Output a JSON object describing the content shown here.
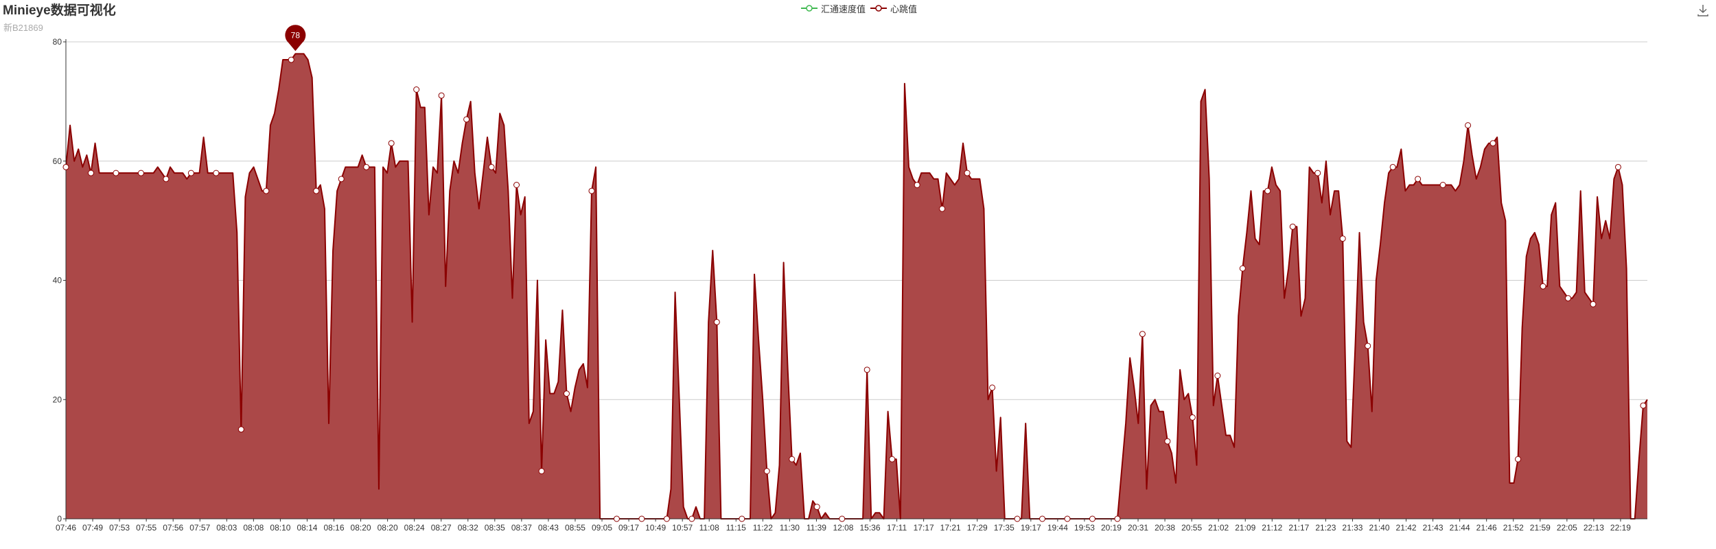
{
  "title": "Minieye数据可视化",
  "subtitle": "新B21869",
  "toolbox": {
    "save_icon": "download-icon"
  },
  "colors": {
    "speed": "#3fb950",
    "heart": "#8b0000",
    "fill": "#ab4848",
    "grid": "#cccccc",
    "axis": "#333333"
  },
  "chart_data": {
    "type": "area",
    "title": "Minieye数据可视化",
    "subtitle": "新B21869",
    "legend": [
      "汇通速度值",
      "心跳值"
    ],
    "legend_position": "top-center",
    "ylim": [
      0,
      80
    ],
    "yticks": [
      0,
      20,
      40,
      60,
      80
    ],
    "grid": true,
    "x_labels": [
      "07:46",
      "07:49",
      "07:53",
      "07:55",
      "07:56",
      "07:57",
      "08:03",
      "08:08",
      "08:10",
      "08:14",
      "08:16",
      "08:20",
      "08:20",
      "08:24",
      "08:27",
      "08:32",
      "08:35",
      "08:37",
      "08:43",
      "08:55",
      "09:05",
      "09:17",
      "10:49",
      "10:57",
      "11:08",
      "11:15",
      "11:22",
      "11:30",
      "11:39",
      "12:08",
      "15:36",
      "17:11",
      "17:17",
      "17:21",
      "17:29",
      "17:35",
      "19:17",
      "19:44",
      "19:53",
      "20:19",
      "20:31",
      "20:38",
      "20:55",
      "21:02",
      "21:09",
      "21:12",
      "21:17",
      "21:23",
      "21:33",
      "21:40",
      "21:42",
      "21:43",
      "21:44",
      "21:46",
      "21:52",
      "21:59",
      "22:05",
      "22:13",
      "22:19"
    ],
    "series": [
      {
        "name": "汇通速度值",
        "values": []
      },
      {
        "name": "心跳值",
        "values": [
          59,
          66,
          60,
          62,
          59,
          61,
          58,
          63,
          58,
          58,
          58,
          58,
          58,
          58,
          58,
          58,
          58,
          58,
          58,
          58,
          58,
          58,
          59,
          58,
          57,
          59,
          58,
          58,
          58,
          57,
          58,
          58,
          58,
          64,
          58,
          58,
          58,
          58,
          58,
          58,
          58,
          48,
          15,
          54,
          58,
          59,
          57,
          55,
          55,
          66,
          68,
          72,
          77,
          77,
          77,
          78,
          78,
          78,
          77,
          74,
          55,
          56,
          52,
          16,
          45,
          55,
          57,
          59,
          59,
          59,
          59,
          61,
          59,
          59,
          59,
          5,
          59,
          58,
          63,
          59,
          60,
          60,
          60,
          33,
          72,
          69,
          69,
          51,
          59,
          58,
          71,
          39,
          55,
          60,
          58,
          63,
          67,
          70,
          58,
          52,
          58,
          64,
          59,
          58,
          68,
          66,
          55,
          37,
          56,
          51,
          54,
          16,
          18,
          40,
          8,
          30,
          21,
          21,
          23,
          35,
          21,
          18,
          22,
          25,
          26,
          22,
          55,
          59,
          0,
          0,
          0,
          0,
          0,
          0,
          0,
          0,
          0,
          0,
          0,
          0,
          0,
          0,
          0,
          0,
          0,
          5,
          38,
          20,
          2,
          0,
          0,
          2,
          0,
          0,
          33,
          45,
          33,
          0,
          0,
          0,
          0,
          0,
          0,
          0,
          0,
          41,
          30,
          20,
          8,
          0,
          1,
          9,
          43,
          25,
          10,
          9,
          11,
          0,
          0,
          3,
          2,
          0,
          1,
          0,
          0,
          0,
          0,
          0,
          0,
          0,
          0,
          0,
          25,
          0,
          1,
          1,
          0,
          18,
          10,
          10,
          0,
          73,
          59,
          57,
          56,
          58,
          58,
          58,
          57,
          57,
          52,
          58,
          57,
          56,
          57,
          63,
          58,
          57,
          57,
          57,
          52,
          20,
          22,
          8,
          17,
          0,
          0,
          0,
          0,
          0,
          16,
          0,
          0,
          0,
          0,
          0,
          0,
          0,
          0,
          0,
          0,
          0,
          0,
          0,
          0,
          0,
          0,
          0,
          0,
          0,
          0,
          0,
          0,
          8,
          16,
          27,
          22,
          16,
          31,
          5,
          19,
          20,
          18,
          18,
          13,
          11,
          6,
          25,
          20,
          21,
          17,
          9,
          70,
          72,
          57,
          19,
          24,
          19,
          14,
          14,
          12,
          34,
          42,
          48,
          55,
          47,
          46,
          55,
          55,
          59,
          56,
          55,
          37,
          42,
          49,
          49,
          34,
          37,
          59,
          58,
          58,
          53,
          60,
          51,
          55,
          55,
          47,
          13,
          12,
          29,
          48,
          33,
          29,
          18,
          40,
          46,
          53,
          58,
          59,
          59,
          62,
          55,
          56,
          56,
          57,
          56,
          56,
          56,
          56,
          56,
          56,
          56,
          56,
          55,
          56,
          60,
          66,
          61,
          57,
          59,
          62,
          63,
          63,
          64,
          53,
          50,
          6,
          6,
          10,
          32,
          44,
          47,
          48,
          46,
          39,
          39,
          51,
          53,
          39,
          38,
          37,
          37,
          38,
          55,
          38,
          37,
          36,
          54,
          47,
          50,
          47,
          57,
          59,
          56,
          42,
          0,
          0,
          10,
          19,
          20
        ]
      }
    ],
    "max_marker": {
      "value": 78,
      "label": "78"
    }
  }
}
